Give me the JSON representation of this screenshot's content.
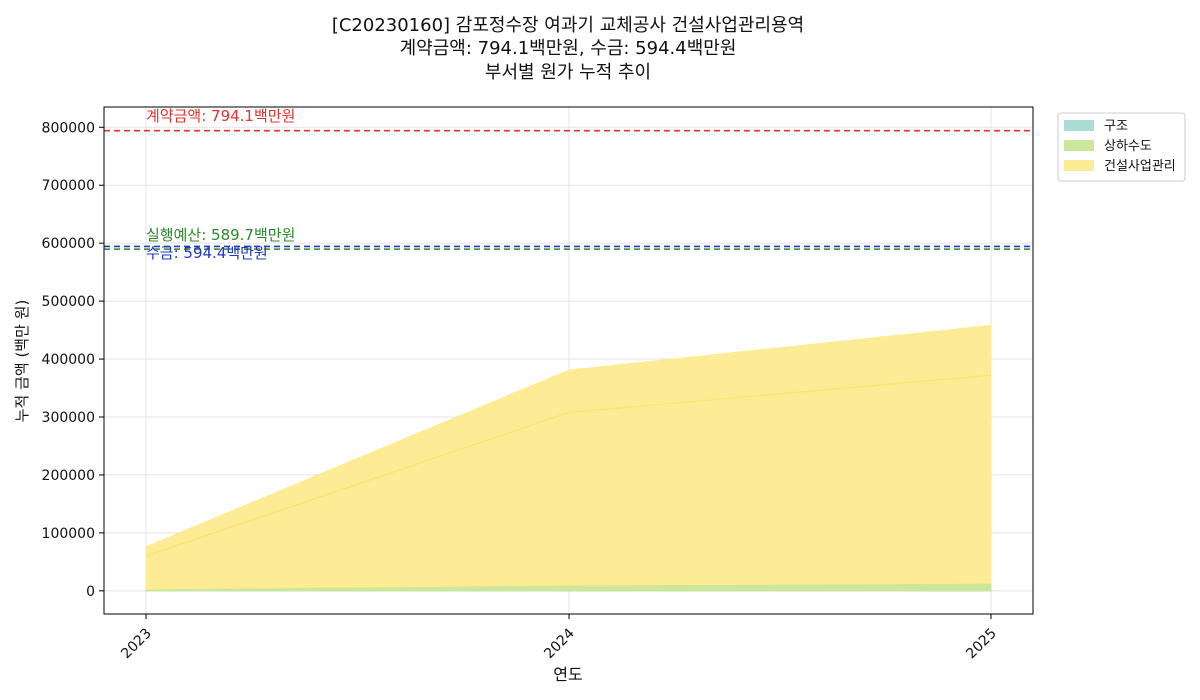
{
  "chart_data": {
    "type": "area",
    "title_lines": [
      "[C20230160] 감포정수장 여과기 교체공사 건설사업관리용역",
      "계약금액: 794.1백만원, 수금: 594.4백만원",
      "부서별 원가 누적 추이"
    ],
    "xlabel": "연도",
    "ylabel": "누적 금액 (백만 원)",
    "x": [
      "2023",
      "2024",
      "2025"
    ],
    "ylim": [
      -40000,
      835000
    ],
    "yticks": [
      0,
      100000,
      200000,
      300000,
      400000,
      500000,
      600000,
      700000,
      800000
    ],
    "stacked": true,
    "grid": true,
    "legend_position": "outside-top-right",
    "series": [
      {
        "name": "구조",
        "color": "#a8dbd3",
        "values": [
          0,
          0,
          0
        ]
      },
      {
        "name": "상하수도",
        "color": "#c9e596",
        "values": [
          3000,
          10000,
          13000
        ]
      },
      {
        "name": "건설사업관리",
        "color": "#fdeb8f",
        "values": [
          73000,
          371000,
          445000
        ]
      }
    ],
    "inner_line": {
      "color": "#fde36a",
      "values": [
        60000,
        308000,
        372000
      ]
    },
    "reference_lines": [
      {
        "label": "계약금액: 794.1백만원",
        "value": 794100,
        "color": "#e8302e"
      },
      {
        "label": "실행예산: 589.7백만원",
        "value": 589700,
        "color": "#2a8a2a"
      },
      {
        "label": "수금: 594.4백만원",
        "value": 594400,
        "color": "#2238c8"
      }
    ]
  }
}
